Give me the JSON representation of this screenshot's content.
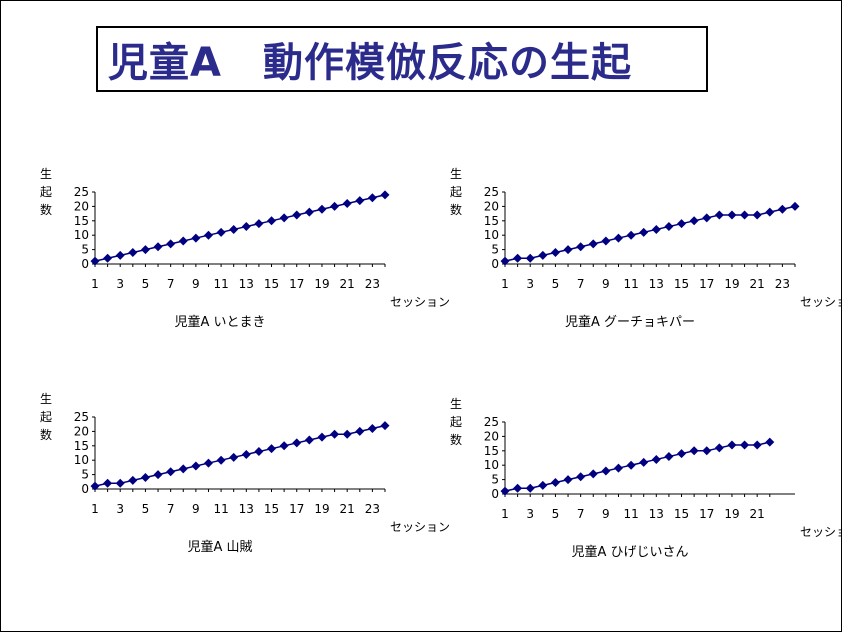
{
  "title": "児童A　動作模倣反応の生起",
  "marker_color": "#000080",
  "line_color": "#000080",
  "chart_data": [
    {
      "type": "line",
      "title": "児童A  いとまき",
      "ylabel": "生起数",
      "xlabel": "セッション",
      "ylim": [
        0,
        25
      ],
      "yticks": [
        0,
        5,
        10,
        15,
        20,
        25
      ],
      "xticks": [
        1,
        3,
        5,
        7,
        9,
        11,
        13,
        15,
        17,
        19,
        21,
        23
      ],
      "x": [
        1,
        2,
        3,
        4,
        5,
        6,
        7,
        8,
        9,
        10,
        11,
        12,
        13,
        14,
        15,
        16,
        17,
        18,
        19,
        20,
        21,
        22,
        23,
        24
      ],
      "series": [
        {
          "values": [
            1,
            2,
            3,
            4,
            5,
            6,
            7,
            8,
            9,
            10,
            11,
            12,
            13,
            14,
            15,
            16,
            17,
            18,
            19,
            20,
            21,
            22,
            23,
            24
          ]
        }
      ]
    },
    {
      "type": "line",
      "title": "児童A  グーチョキパー",
      "ylabel": "生起数",
      "xlabel": "セッション",
      "ylim": [
        0,
        25
      ],
      "yticks": [
        0,
        5,
        10,
        15,
        20,
        25
      ],
      "xticks": [
        1,
        3,
        5,
        7,
        9,
        11,
        13,
        15,
        17,
        19,
        21,
        23
      ],
      "x": [
        1,
        2,
        3,
        4,
        5,
        6,
        7,
        8,
        9,
        10,
        11,
        12,
        13,
        14,
        15,
        16,
        17,
        18,
        19,
        20,
        21,
        22,
        23,
        24
      ],
      "series": [
        {
          "values": [
            1,
            2,
            2,
            3,
            4,
            5,
            6,
            7,
            8,
            9,
            10,
            11,
            12,
            13,
            14,
            15,
            16,
            17,
            17,
            17,
            17,
            18,
            19,
            20
          ]
        }
      ]
    },
    {
      "type": "line",
      "title": "児童A  山賊",
      "ylabel": "生起数",
      "xlabel": "セッション",
      "ylim": [
        0,
        25
      ],
      "yticks": [
        0,
        5,
        10,
        15,
        20,
        25
      ],
      "xticks": [
        1,
        3,
        5,
        7,
        9,
        11,
        13,
        15,
        17,
        19,
        21,
        23
      ],
      "x": [
        1,
        2,
        3,
        4,
        5,
        6,
        7,
        8,
        9,
        10,
        11,
        12,
        13,
        14,
        15,
        16,
        17,
        18,
        19,
        20,
        21,
        22,
        23,
        24
      ],
      "series": [
        {
          "values": [
            1,
            2,
            2,
            3,
            4,
            5,
            6,
            7,
            8,
            9,
            10,
            11,
            12,
            13,
            14,
            15,
            16,
            17,
            18,
            19,
            19,
            20,
            21,
            22
          ]
        }
      ]
    },
    {
      "type": "line",
      "title": "児童A  ひげじいさん",
      "ylabel": "生起数",
      "xlabel": "セッション",
      "ylim": [
        0,
        25
      ],
      "yticks": [
        0,
        5,
        10,
        15,
        20,
        25
      ],
      "xticks": [
        1,
        3,
        5,
        7,
        9,
        11,
        13,
        15,
        17,
        19,
        21
      ],
      "x": [
        1,
        2,
        3,
        4,
        5,
        6,
        7,
        8,
        9,
        10,
        11,
        12,
        13,
        14,
        15,
        16,
        17,
        18,
        19,
        20,
        21,
        22
      ],
      "series": [
        {
          "values": [
            1,
            2,
            2,
            3,
            4,
            5,
            6,
            7,
            8,
            9,
            10,
            11,
            12,
            13,
            14,
            15,
            15,
            16,
            17,
            17,
            17,
            18
          ]
        }
      ]
    }
  ]
}
